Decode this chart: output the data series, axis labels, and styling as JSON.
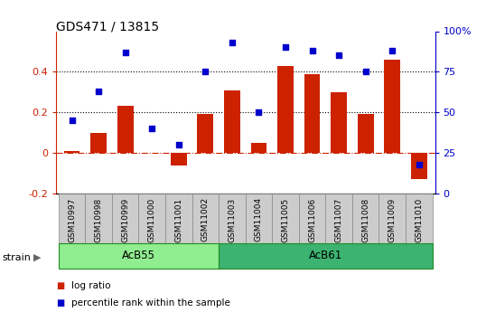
{
  "title": "GDS471 / 13815",
  "samples": [
    "GSM10997",
    "GSM10998",
    "GSM10999",
    "GSM11000",
    "GSM11001",
    "GSM11002",
    "GSM11003",
    "GSM11004",
    "GSM11005",
    "GSM11006",
    "GSM11007",
    "GSM11008",
    "GSM11009",
    "GSM11010"
  ],
  "log_ratio": [
    0.01,
    0.1,
    0.23,
    0.0,
    -0.06,
    0.19,
    0.31,
    0.05,
    0.43,
    0.39,
    0.3,
    0.19,
    0.46,
    -0.13
  ],
  "pct_rank": [
    45,
    63,
    87,
    40,
    30,
    75,
    93,
    50,
    90,
    88,
    85,
    75,
    88,
    18
  ],
  "groups": [
    {
      "label": "AcB55",
      "start": 0,
      "end": 6,
      "color": "#90EE90"
    },
    {
      "label": "AcB61",
      "start": 6,
      "end": 14,
      "color": "#3CB371"
    }
  ],
  "bar_color": "#CC2200",
  "dot_color": "#0000CC",
  "ylim_left": [
    -0.2,
    0.6
  ],
  "ylim_right": [
    0,
    100
  ],
  "yticks_left": [
    0.4,
    0.2,
    0.0,
    -0.2
  ],
  "ytick_labels_left": [
    "0.4",
    "0.2",
    "0",
    "-0.2"
  ],
  "yticks_right": [
    100,
    75,
    50,
    25,
    0
  ],
  "ytick_labels_right": [
    "100%",
    "75",
    "50",
    "25",
    "0"
  ],
  "hlines": [
    0.2,
    0.4
  ],
  "fig_width": 5.38,
  "fig_height": 3.45,
  "dpi": 100,
  "strain_label": "strain",
  "legend_log_ratio": "log ratio",
  "legend_pct": "percentile rank within the sample"
}
